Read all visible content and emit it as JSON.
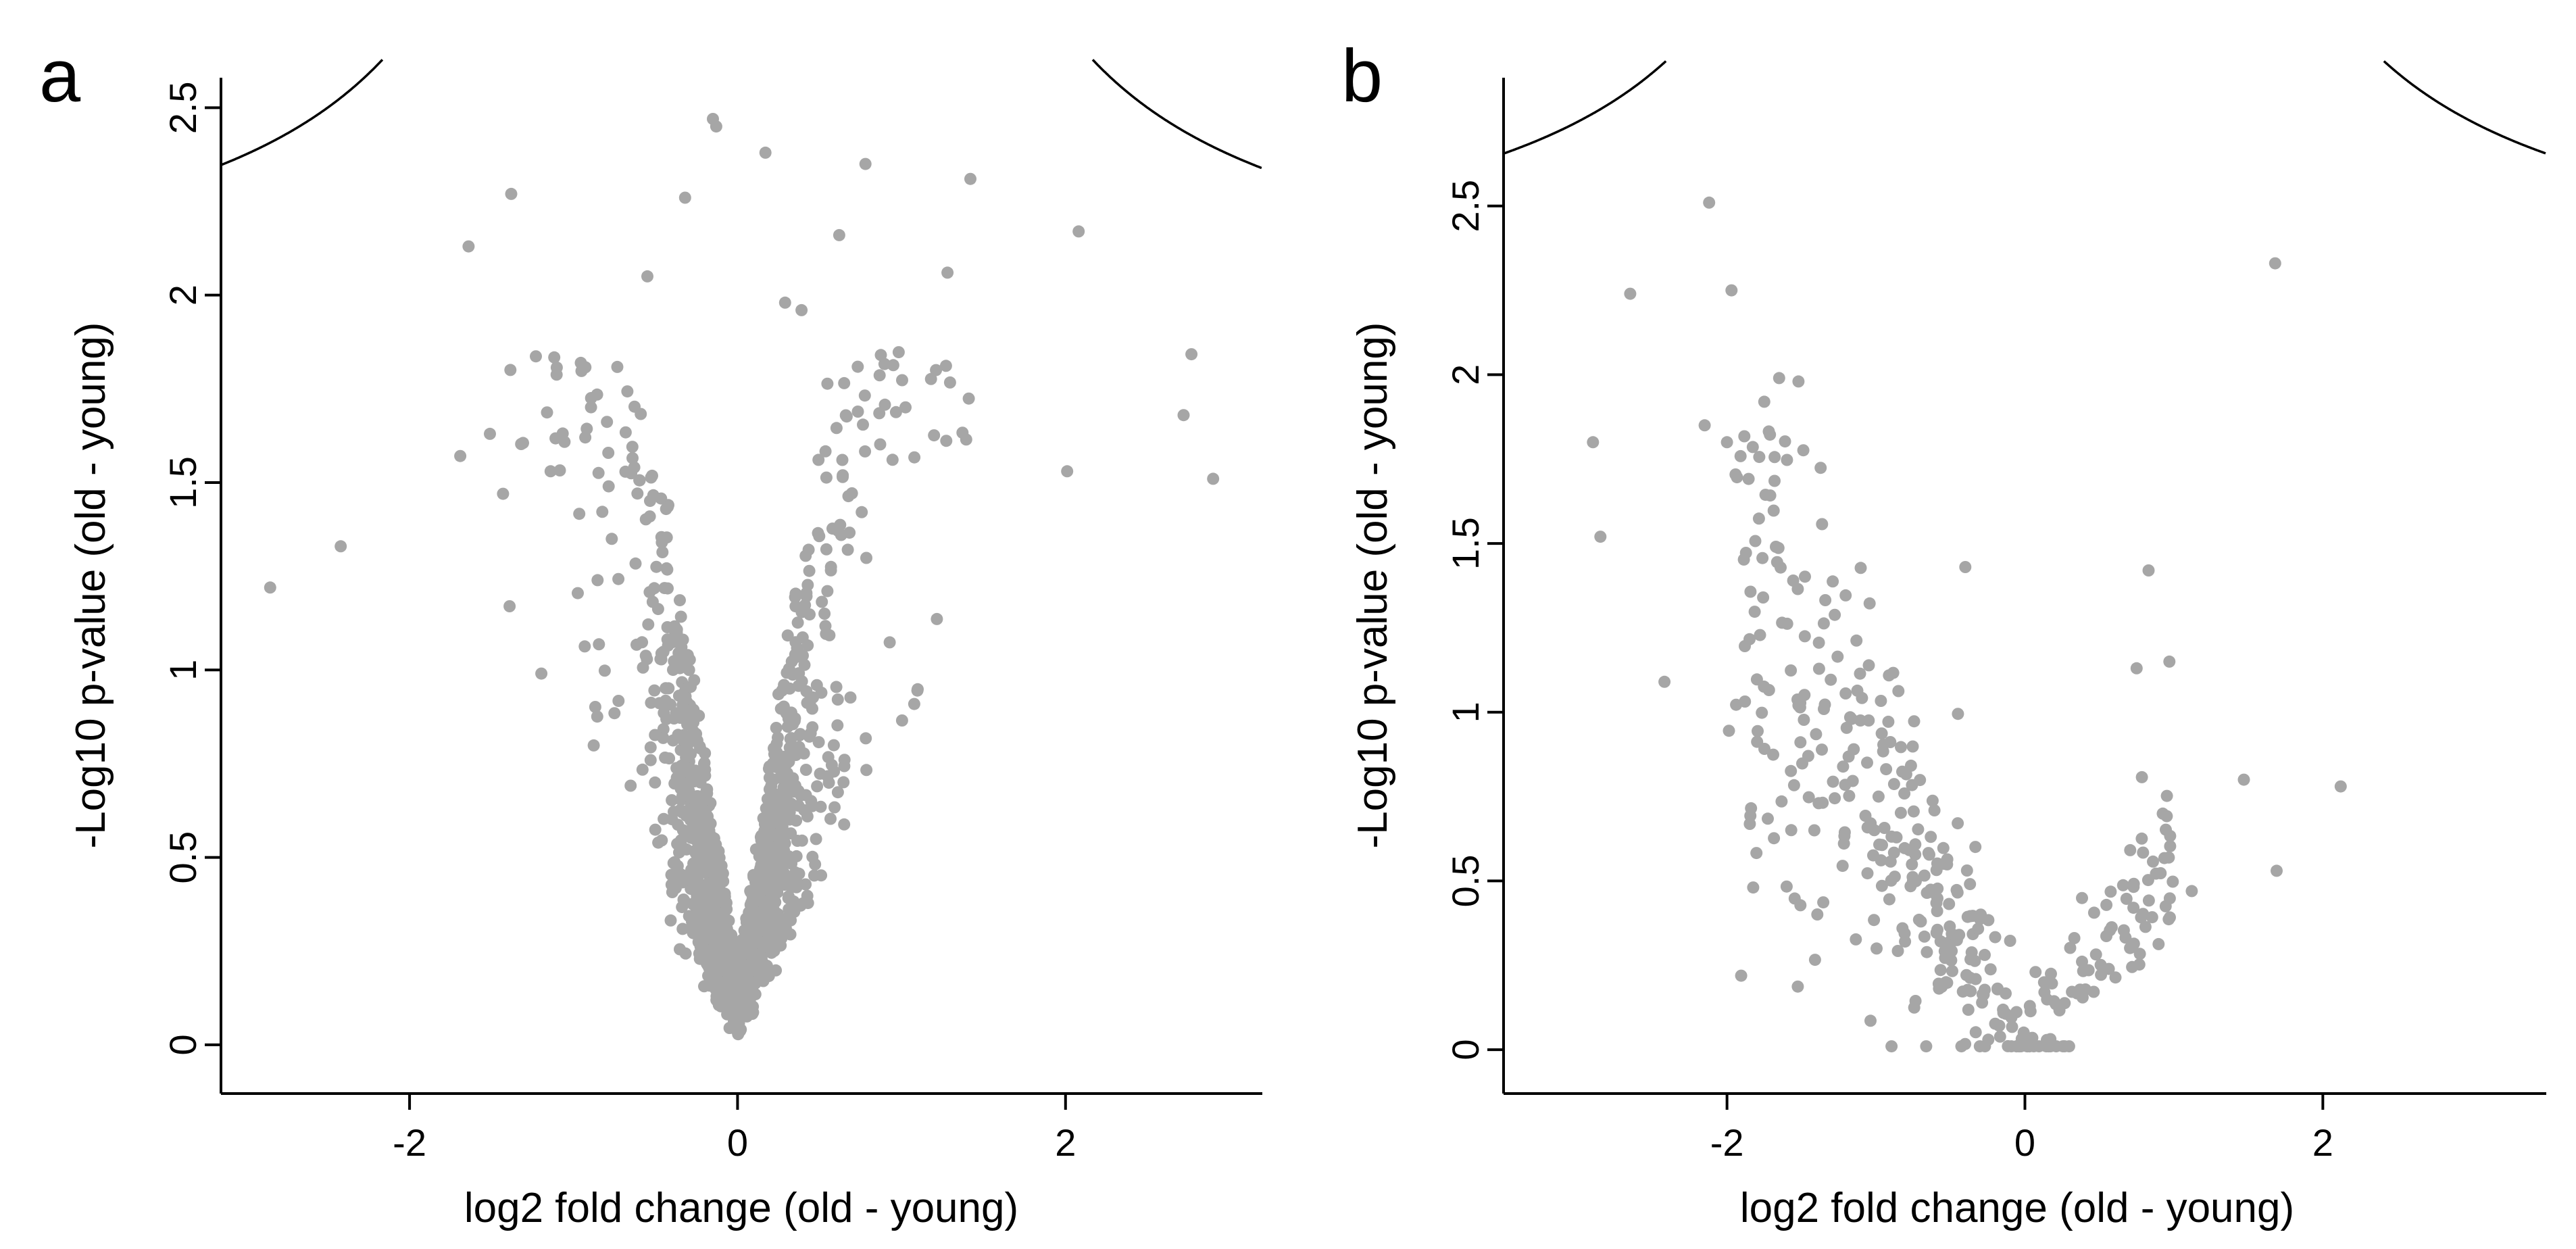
{
  "chart_data": [
    {
      "type": "scatter",
      "panel_label": "a",
      "title": "",
      "xlabel": "log2 fold change (old - young)",
      "ylabel": "-Log10 p-value (old - young)",
      "xlim": [
        -3.15,
        3.2
      ],
      "ylim": [
        -0.13,
        2.58
      ],
      "xticks": [
        -2,
        0,
        2
      ],
      "xtick_labels": [
        "-2",
        "0",
        "2"
      ],
      "yticks": [
        0,
        0.5,
        1,
        1.5,
        2,
        2.5
      ],
      "ytick_labels": [
        "0",
        "0.5",
        "1",
        "1.5",
        "2",
        "2.5"
      ],
      "point_color": "#a6a6a6",
      "threshold_curve": {
        "s0": 0.6,
        "c": 1.9
      },
      "labeled_points": {
        "x": [
          -2.85,
          -2.42,
          -1.64,
          -1.38,
          -1.51,
          -1.43,
          -1.39,
          -1.14,
          -0.55,
          -0.32,
          -0.15,
          -0.13,
          0.17,
          0.78,
          1.42,
          2.08,
          1.28,
          2.72,
          2.01,
          2.9,
          0.62,
          0.39,
          1.21,
          0.29
        ],
        "y": [
          1.22,
          1.33,
          2.13,
          2.27,
          1.63,
          1.47,
          1.17,
          1.53,
          2.05,
          2.26,
          2.47,
          2.45,
          2.38,
          2.35,
          2.31,
          2.17,
          2.06,
          1.68,
          1.53,
          1.51,
          2.16,
          1.96,
          1.8,
          1.98
        ]
      },
      "bulk_points": {
        "count": 1500,
        "seed": 11,
        "core_sd": 0.22,
        "tail_sd": 0.6,
        "slope": 2.6,
        "pmin": 0.04
      }
    },
    {
      "type": "scatter",
      "panel_label": "b",
      "title": "",
      "xlabel": "log2 fold change (old - young)",
      "ylabel": "-Log10 p-value (old - young)",
      "xlim": [
        -3.5,
        3.5
      ],
      "ylim": [
        -0.13,
        2.88
      ],
      "xticks": [
        -2,
        0,
        2
      ],
      "xtick_labels": [
        "-2",
        "0",
        "2"
      ],
      "yticks": [
        0,
        0.5,
        1,
        1.5,
        2,
        2.5
      ],
      "ytick_labels": [
        "0",
        "0.5",
        "1",
        "1.5",
        "2",
        "2.5"
      ],
      "point_color": "#a6a6a6",
      "threshold_curve": {
        "s0": 0.6,
        "c": 2.2
      },
      "labeled_points": {
        "x": [
          -2.12,
          -2.65,
          -1.97,
          -2.9,
          -2.85,
          -2.42,
          -2.15,
          -2.0,
          -1.65,
          -1.75,
          -1.52,
          1.68,
          1.69,
          2.12,
          1.47,
          0.83,
          0.97,
          1.12,
          0.75,
          -0.4
        ],
        "y": [
          2.51,
          2.24,
          2.25,
          1.8,
          1.52,
          1.09,
          1.85,
          1.8,
          1.99,
          1.92,
          1.98,
          2.33,
          0.53,
          0.78,
          0.8,
          1.42,
          1.15,
          0.47,
          1.13,
          1.43
        ]
      },
      "bulk_points": {
        "count": 380,
        "seed": 7,
        "trend_slope": -0.55,
        "noise_sd": 0.22,
        "left_weight": 0.75
      }
    }
  ]
}
